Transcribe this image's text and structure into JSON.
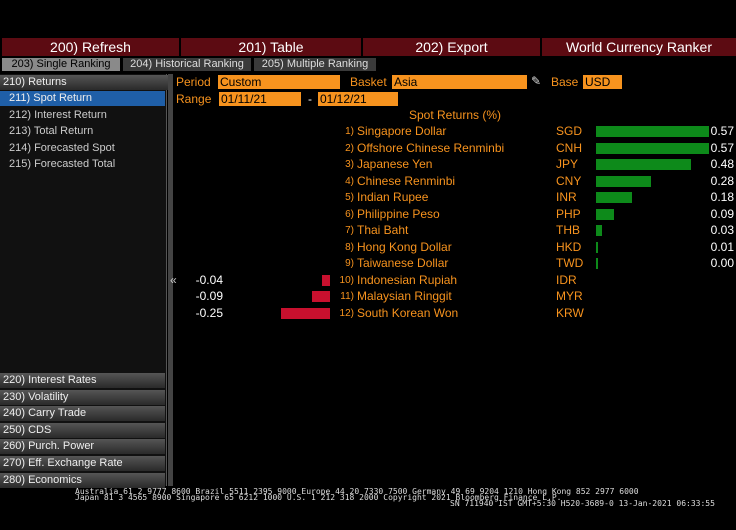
{
  "toolbar": {
    "buttons": [
      "200) Refresh",
      "201) Table",
      "202) Export"
    ],
    "title": "World Currency Ranker"
  },
  "tabs": [
    "203) Single Ranking",
    "204) Historical Ranking",
    "205) Multiple Ranking"
  ],
  "sidebar": {
    "header": "210) Returns",
    "items": [
      "211) Spot Return",
      "212) Interest Return",
      "213) Total Return",
      "214) Forecasted Spot",
      "215) Forecasted Total"
    ],
    "sections": [
      "220) Interest Rates",
      "230) Volatility",
      "240) Carry Trade",
      "250) CDS",
      "260) Purch. Power",
      "270) Eff. Exchange Rate",
      "280) Economics"
    ]
  },
  "controls": {
    "period_label": "Period",
    "period": "Custom",
    "basket_label": "Basket",
    "basket": "Asia",
    "base_label": "Base",
    "base": "USD",
    "range_label": "Range",
    "range_start": "01/11/21",
    "range_sep": "-",
    "range_end": "01/12/21"
  },
  "ranking": {
    "title": "Spot Returns (%)",
    "ranks": [
      "1)",
      "2)",
      "3)",
      "4)",
      "5)",
      "6)",
      "7)",
      "8)",
      "9)",
      "10)",
      "11)",
      "12)"
    ],
    "names": [
      "Singapore Dollar",
      "Offshore Chinese Renminbi",
      "Japanese Yen",
      "Chinese Renminbi",
      "Indian Rupee",
      "Philippine Peso",
      "Thai Baht",
      "Hong Kong Dollar",
      "Taiwanese Dollar",
      "Indonesian Rupiah",
      "Malaysian Ringgit",
      "South Korean Won"
    ],
    "codes": [
      "SGD",
      "CNH",
      "JPY",
      "CNY",
      "INR",
      "PHP",
      "THB",
      "HKD",
      "TWD",
      "IDR",
      "MYR",
      "KRW"
    ],
    "values": [
      0.57,
      0.57,
      0.48,
      0.28,
      0.18,
      0.09,
      0.03,
      0.01,
      0,
      -0.04,
      -0.09,
      -0.25
    ],
    "value_labels": [
      "0.57",
      "0.57",
      "0.48",
      "0.28",
      "0.18",
      "0.09",
      "0.03",
      "0.01",
      "0.00",
      "-0.04",
      "-0.09",
      "-0.25"
    ]
  },
  "footer": [
    "Australia 61 2 9777 8600 Brazil 5511 2395 9000 Europe 44 20 7330 7500 Germany 49 69 9204 1210 Hong Kong 852 2977 6000",
    "Japan 81 3 4565 8900       Singapore 65 6212 1000       U.S. 1 212 318 2000       Copyright 2021 Bloomberg Finance L.P.",
    "SN 711940 IST  GMT+5:30 H520-3689-0 13-Jan-2021 06:33:55"
  ]
}
